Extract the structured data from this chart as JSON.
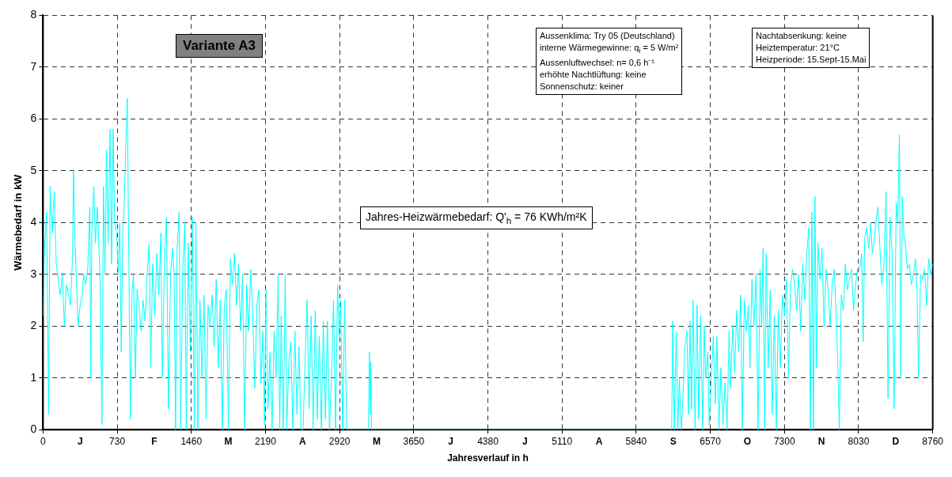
{
  "chart_data": {
    "type": "line",
    "xlabel": "Jahresverlauf in h",
    "ylabel": "Wärmebedarf in kW",
    "xlim": [
      0,
      8760
    ],
    "ylim": [
      0,
      8
    ],
    "xticks": [
      0,
      {
        "value": 365,
        "label": "J"
      },
      730,
      {
        "value": 1095,
        "label": "F"
      },
      1460,
      {
        "value": 1825,
        "label": "M"
      },
      2190,
      {
        "value": 2555,
        "label": "A"
      },
      2920,
      {
        "value": 3285,
        "label": "M"
      },
      3650,
      {
        "value": 4015,
        "label": "J"
      },
      4380,
      {
        "value": 4745,
        "label": "J"
      },
      5110,
      {
        "value": 5475,
        "label": "A"
      },
      5840,
      {
        "value": 6205,
        "label": "S"
      },
      6570,
      {
        "value": 6935,
        "label": "O"
      },
      7300,
      {
        "value": 7665,
        "label": "N"
      },
      8030,
      {
        "value": 8395,
        "label": "D"
      },
      8760
    ],
    "yticks": [
      0,
      1,
      2,
      3,
      4,
      5,
      6,
      7,
      8
    ],
    "grid": true,
    "legend": false,
    "annotations": [
      "Variante A3",
      "Aussenklima:  Try 05 (Deutschland)",
      "interne Wärmegewinne: q$_{i}$ = 5 W/m²",
      "Aussenluftwechsel:  n= 0,6 h⁻¹",
      "erhöhte Nachtlüftung:  keine",
      "Sonnenschutz:  keiner",
      "Nachtabsenkung: keine",
      "Heiztemperatur:  21°C",
      "Heizperiode:  15.Sept-15.Mai",
      "Jahres-Heizwärmebedarf: Q'$_{h}$ =  76 KWh/m²K"
    ],
    "series": [
      {
        "color": "#00ffff",
        "x": [
          0,
          15,
          35,
          55,
          70,
          90,
          110,
          130,
          150,
          170,
          190,
          210,
          230,
          250,
          270,
          290,
          300,
          315,
          330,
          345,
          365,
          385,
          400,
          420,
          440,
          460,
          470,
          480,
          500,
          515,
          535,
          560,
          580,
          595,
          610,
          625,
          640,
          660,
          675,
          690,
          705,
          725,
          740,
          755,
          770,
          785,
          800,
          815,
          830,
          845,
          860,
          875,
          890,
          910,
          925,
          945,
          965,
          985,
          1005,
          1025,
          1045,
          1060,
          1080,
          1100,
          1120,
          1140,
          1160,
          1175,
          1195,
          1215,
          1235,
          1255,
          1275,
          1290,
          1305,
          1320,
          1340,
          1355,
          1375,
          1395,
          1410,
          1430,
          1450,
          1470,
          1490,
          1505,
          1525,
          1545,
          1565,
          1585,
          1605,
          1625,
          1645,
          1665,
          1685,
          1705,
          1725,
          1745,
          1765,
          1785,
          1805,
          1825,
          1845,
          1865,
          1885,
          1905,
          1925,
          1945,
          1965,
          1985,
          2005,
          2025,
          2045,
          2065,
          2085,
          2105,
          2125,
          2145,
          2165,
          2180,
          2195,
          2215,
          2235,
          2255,
          2275,
          2295,
          2315,
          2330,
          2345,
          2365,
          2385,
          2400,
          2420,
          2440,
          2460,
          2480,
          2500,
          2520,
          2540,
          2560,
          2580,
          2600,
          2620,
          2640,
          2660,
          2680,
          2700,
          2720,
          2740,
          2760,
          2780,
          2800,
          2820,
          2840,
          2860,
          2880,
          2900,
          2915,
          2930,
          2950,
          2970,
          2990,
          3010,
          3200,
          3205,
          3214,
          3222,
          3228,
          3235,
          6190,
          6200,
          6215,
          6235,
          6250,
          6265,
          6285,
          6300,
          6320,
          6340,
          6355,
          6370,
          6385,
          6400,
          6420,
          6440,
          6455,
          6475,
          6495,
          6510,
          6525,
          6545,
          6560,
          6580,
          6600,
          6620,
          6635,
          6655,
          6675,
          6695,
          6715,
          6735,
          6755,
          6770,
          6790,
          6810,
          6830,
          6850,
          6870,
          6885,
          6905,
          6925,
          6945,
          6960,
          6980,
          7000,
          7020,
          7040,
          7060,
          7075,
          7090,
          7105,
          7120,
          7140,
          7160,
          7180,
          7200,
          7220,
          7240,
          7260,
          7280,
          7300,
          7320,
          7340,
          7360,
          7380,
          7400,
          7420,
          7440,
          7460,
          7480,
          7500,
          7520,
          7540,
          7555,
          7570,
          7585,
          7600,
          7615,
          7630,
          7650,
          7670,
          7690,
          7710,
          7730,
          7750,
          7770,
          7790,
          7810,
          7825,
          7840,
          7860,
          7880,
          7900,
          7920,
          7940,
          7960,
          7980,
          8000,
          8020,
          8040,
          8060,
          8075,
          8090,
          8110,
          8130,
          8150,
          8165,
          8180,
          8200,
          8220,
          8240,
          8260,
          8280,
          8300,
          8320,
          8340,
          8360,
          8380,
          8400,
          8415,
          8432,
          8445,
          8460,
          8475,
          8495,
          8510,
          8530,
          8550,
          8570,
          8590,
          8605,
          8620,
          8640,
          8660,
          8680,
          8700,
          8720,
          8740,
          8760
        ],
        "values": [
          2.2,
          3.5,
          4.2,
          0.3,
          4.7,
          3.8,
          4.6,
          3.2,
          2.9,
          2.6,
          3.0,
          2.0,
          2.8,
          2.6,
          2.4,
          3.3,
          5.0,
          3.6,
          2.8,
          2.0,
          2.4,
          2.6,
          3.0,
          2.8,
          3.1,
          4.3,
          1.0,
          3.8,
          4.7,
          3.6,
          4.3,
          3.0,
          0.1,
          4.7,
          3.0,
          5.4,
          3.6,
          5.8,
          3.2,
          5.8,
          4.0,
          3.8,
          3.0,
          4.0,
          1.5,
          3.8,
          4.4,
          5.5,
          6.4,
          3.2,
          0.2,
          2.6,
          3.0,
          1.0,
          2.7,
          2.4,
          1.9,
          2.5,
          2.1,
          3.0,
          3.6,
          1.2,
          3.2,
          2.2,
          3.4,
          2.6,
          3.8,
          1.0,
          3.3,
          4.1,
          0.4,
          3.0,
          3.5,
          3.0,
          0.0,
          3.5,
          4.2,
          0.0,
          3.0,
          4.0,
          0.0,
          3.6,
          1.5,
          4.1,
          0.0,
          4.0,
          0.0,
          2.5,
          1.0,
          2.6,
          0.2,
          2.4,
          2.0,
          2.6,
          1.6,
          2.9,
          1.2,
          2.5,
          0.0,
          2.4,
          2.7,
          0.0,
          3.3,
          2.8,
          3.4,
          2.4,
          3.2,
          1.9,
          3.0,
          0.0,
          2.8,
          1.9,
          3.1,
          2.2,
          0.8,
          2.4,
          2.7,
          0.9,
          1.9,
          0.1,
          2.7,
          0.4,
          1.5,
          0.0,
          1.9,
          1.0,
          3.0,
          0.0,
          2.2,
          0.0,
          3.0,
          0.0,
          1.3,
          1.7,
          0.0,
          1.9,
          0.3,
          1.6,
          0.0,
          0.0,
          1.3,
          2.5,
          0.4,
          2.2,
          0.0,
          2.3,
          0.2,
          1.8,
          0.0,
          2.1,
          0.2,
          2.1,
          0.0,
          1.0,
          2.5,
          0.0,
          2.8,
          1.8,
          2.5,
          0.0,
          2.5,
          0.0,
          0.0,
          0.0,
          0.3,
          1.5,
          0.3,
          1.3,
          0.0,
          0.0,
          2.1,
          0.0,
          1.9,
          0.0,
          1.0,
          0.0,
          0.6,
          1.6,
          1.9,
          0.3,
          2.1,
          0.4,
          2.5,
          0.0,
          2.4,
          0.2,
          2.2,
          0.0,
          2.0,
          1.0,
          1.5,
          0.1,
          1.0,
          1.8,
          0.5,
          1.8,
          0.0,
          1.2,
          0.1,
          0.9,
          0.0,
          1.9,
          0.8,
          2.0,
          1.1,
          2.3,
          1.5,
          2.6,
          0.0,
          2.5,
          1.9,
          2.4,
          1.2,
          2.9,
          2.0,
          3.0,
          0.0,
          3.1,
          2.0,
          3.5,
          0.0,
          3.4,
          1.2,
          2.7,
          0.3,
          2.2,
          0.0,
          2.3,
          1.2,
          2.6,
          2.2,
          2.9,
          1.0,
          2.8,
          3.1,
          2.8,
          2.3,
          3.0,
          1.9,
          3.2,
          2.5,
          3.4,
          3.9,
          0.0,
          4.2,
          0.0,
          4.5,
          1.2,
          3.6,
          2.9,
          3.5,
          2.0,
          3.1,
          2.7,
          2.0,
          2.8,
          3.1,
          2.2,
          1.3,
          0.0,
          2.6,
          2.3,
          3.2,
          2.7,
          2.9,
          3.1,
          2.3,
          2.8,
          3.1,
          3.1,
          3.4,
          1.7,
          3.7,
          3.9,
          3.5,
          4.0,
          3.4,
          3.6,
          4.0,
          4.3,
          3.5,
          2.8,
          3.2,
          4.6,
          0.6,
          4.1,
          3.4,
          0.4,
          4.4,
          4.0,
          5.7,
          1.0,
          4.5,
          3.8,
          3.5,
          3.1,
          3.2,
          2.8,
          3.0,
          3.3,
          2.7,
          1.0,
          3.0,
          2.9,
          3.1,
          2.4,
          3.3,
          3.0,
          3.2
        ]
      }
    ]
  }
}
